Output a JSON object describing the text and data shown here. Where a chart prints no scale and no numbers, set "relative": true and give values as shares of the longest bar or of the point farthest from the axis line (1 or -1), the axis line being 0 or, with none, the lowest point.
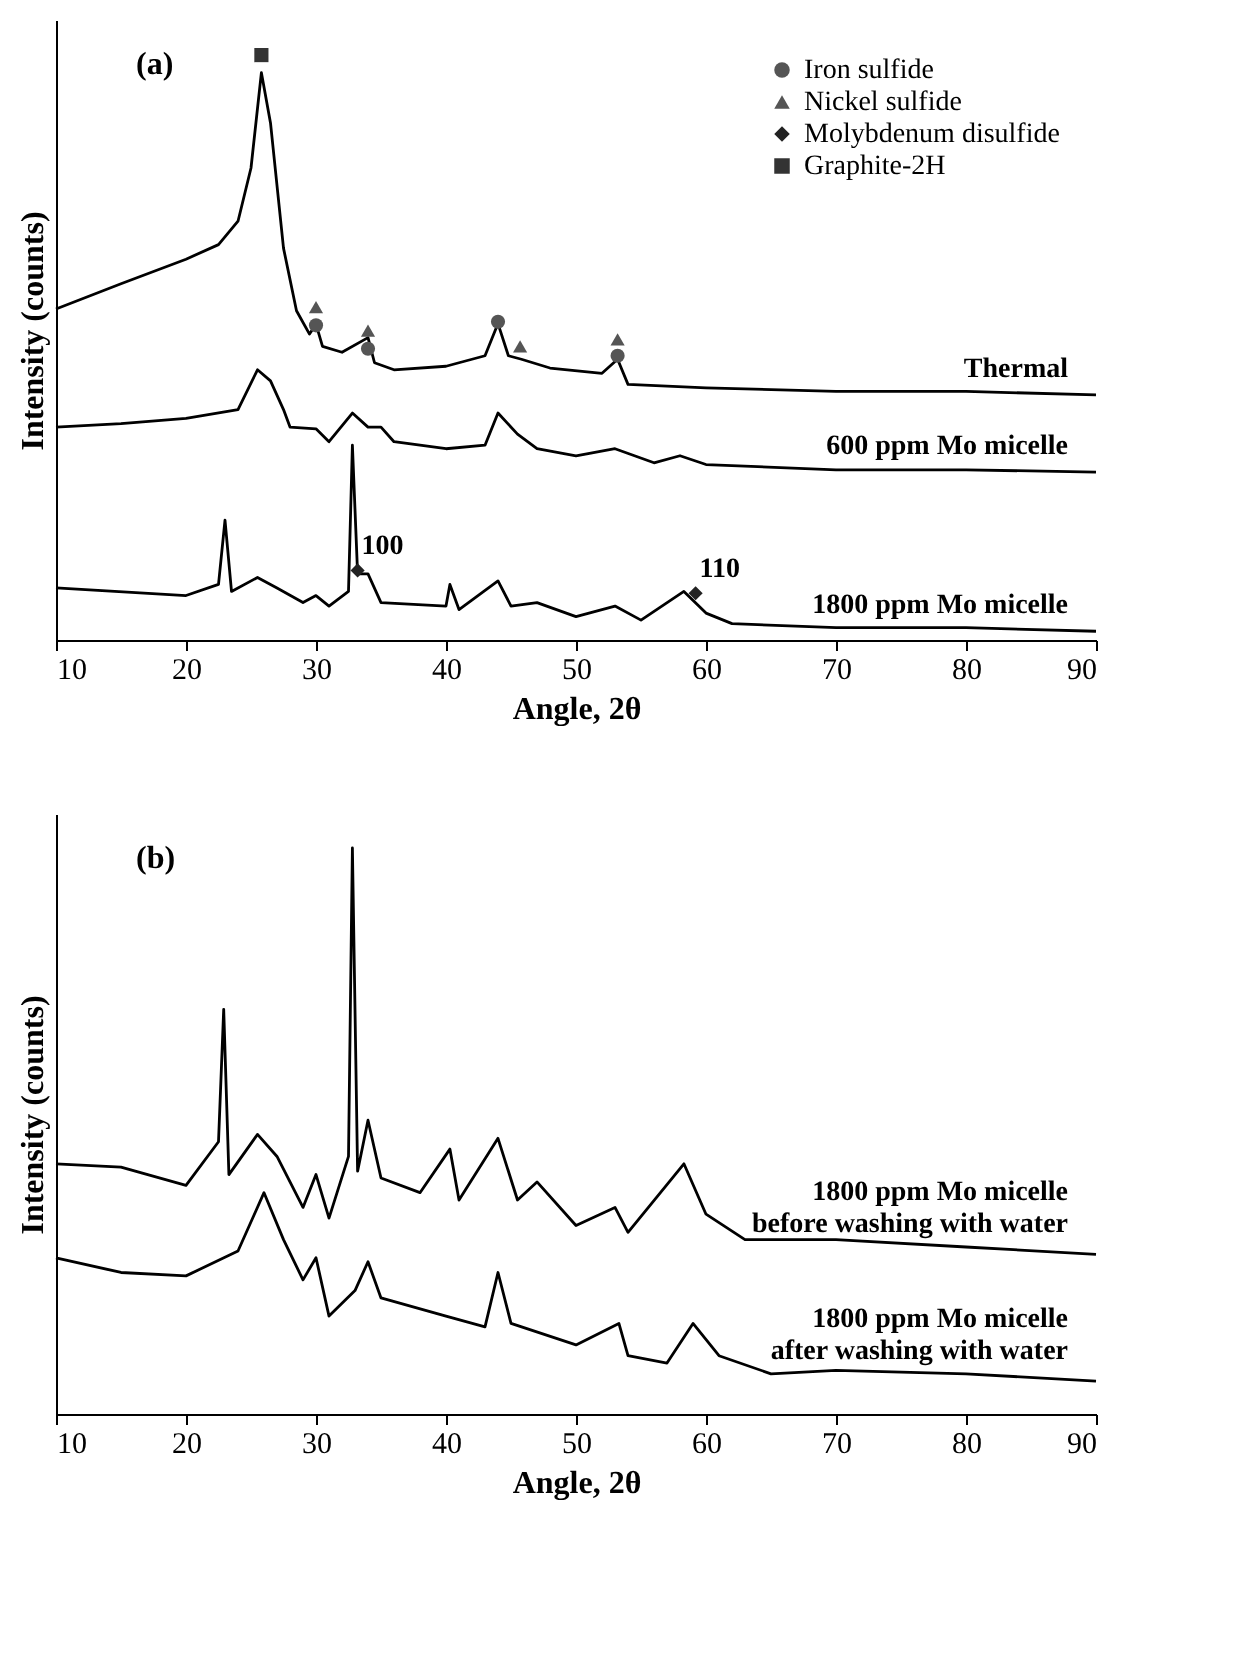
{
  "chart_data": [
    {
      "type": "line",
      "xlabel": "Angle, 2θ",
      "ylabel": "Intensity (counts)",
      "xlim": [
        10,
        90
      ],
      "xticks": [
        10,
        20,
        30,
        40,
        50,
        60,
        70,
        80,
        90
      ],
      "relative": true,
      "legend": "top right",
      "line_style": "solid",
      "annotations": [
        "(a)",
        {
          "text": "100",
          "x": 33.2,
          "y": 0.119
        },
        {
          "text": "110",
          "x": 59.2,
          "y": 0.08
        }
      ],
      "series": [
        {
          "name": "Thermal",
          "type": "line",
          "color": "#000000",
          "x": [
            10,
            15,
            20,
            22.5,
            24,
            25,
            25.8,
            26.5,
            27.5,
            28.5,
            29.5,
            30,
            30.5,
            32,
            34,
            34.5,
            36,
            40,
            43,
            44,
            44.8,
            45.8,
            48,
            52,
            53.2,
            54,
            60,
            70,
            80,
            90
          ],
          "values": [
            0.566,
            0.609,
            0.651,
            0.676,
            0.716,
            0.807,
            0.97,
            0.884,
            0.67,
            0.563,
            0.523,
            0.54,
            0.502,
            0.492,
            0.517,
            0.474,
            0.462,
            0.468,
            0.486,
            0.541,
            0.486,
            0.48,
            0.465,
            0.456,
            0.48,
            0.437,
            0.431,
            0.425,
            0.425,
            0.419
          ]
        },
        {
          "name": "600 ppm Mo micelle",
          "type": "line",
          "color": "#000000",
          "x": [
            10,
            15,
            20,
            24,
            25.5,
            26.5,
            27.5,
            28,
            30,
            31,
            32.8,
            34,
            35,
            36,
            40,
            43,
            44,
            45.5,
            47,
            50,
            53,
            56,
            58,
            60,
            70,
            80,
            90
          ],
          "values": [
            0.364,
            0.37,
            0.379,
            0.394,
            0.462,
            0.443,
            0.394,
            0.364,
            0.361,
            0.339,
            0.388,
            0.364,
            0.364,
            0.339,
            0.327,
            0.333,
            0.388,
            0.352,
            0.327,
            0.315,
            0.327,
            0.303,
            0.315,
            0.3,
            0.291,
            0.291,
            0.287
          ]
        },
        {
          "name": "1800 ppm Mo micelle",
          "type": "line",
          "color": "#000000",
          "x": [
            10,
            20,
            22.5,
            23,
            23.5,
            25.5,
            27,
            29,
            30,
            31,
            32.5,
            32.8,
            33.2,
            34,
            35,
            40,
            40.3,
            41,
            44,
            45,
            47,
            50,
            53,
            55,
            58.3,
            60,
            62,
            70,
            80,
            90
          ],
          "values": [
            0.089,
            0.076,
            0.095,
            0.205,
            0.083,
            0.107,
            0.089,
            0.064,
            0.076,
            0.058,
            0.083,
            0.333,
            0.113,
            0.113,
            0.064,
            0.058,
            0.095,
            0.052,
            0.101,
            0.058,
            0.064,
            0.04,
            0.058,
            0.034,
            0.083,
            0.046,
            0.028,
            0.021,
            0.021,
            0.015
          ]
        },
        {
          "name": "Iron sulfide",
          "type": "scatter",
          "marker": "circle",
          "color": "#555555",
          "x": [
            30,
            34,
            44,
            53.2
          ],
          "values": [
            0.538,
            0.498,
            0.544,
            0.486
          ]
        },
        {
          "name": "Nickel sulfide",
          "type": "scatter",
          "marker": "triangle",
          "color": "#555555",
          "x": [
            30,
            34,
            45.7,
            53.2
          ],
          "values": [
            0.569,
            0.529,
            0.502,
            0.514
          ]
        },
        {
          "name": "Molybdenum disulfide",
          "type": "scatter",
          "marker": "diamond",
          "color": "#222222",
          "x": [
            33.2,
            59.2
          ],
          "values": [
            0.119,
            0.08
          ]
        },
        {
          "name": "Graphite-2H",
          "type": "scatter",
          "marker": "square",
          "color": "#333333",
          "x": [
            25.8
          ],
          "values": [
            1.0
          ]
        }
      ]
    },
    {
      "type": "line",
      "xlabel": "Angle, 2θ",
      "ylabel": "Intensity (counts)",
      "xlim": [
        10,
        90
      ],
      "xticks": [
        10,
        20,
        30,
        40,
        50,
        60,
        70,
        80,
        90
      ],
      "relative": true,
      "line_style": "solid",
      "annotations": [
        "(b)"
      ],
      "series": [
        {
          "name": "1800 ppm Mo micelle\nbefore washing with water",
          "type": "line",
          "color": "#000000",
          "x": [
            10,
            15,
            20,
            22.5,
            22.9,
            23.3,
            25.5,
            27,
            29,
            30,
            31,
            32.5,
            32.8,
            33.2,
            34,
            35,
            38,
            40.3,
            41,
            44,
            45.5,
            47,
            50,
            53,
            54,
            58.3,
            60,
            63,
            70,
            80,
            90
          ],
          "values": [
            0.442,
            0.436,
            0.404,
            0.481,
            0.715,
            0.423,
            0.494,
            0.455,
            0.365,
            0.423,
            0.346,
            0.455,
            1.0,
            0.429,
            0.519,
            0.417,
            0.391,
            0.468,
            0.378,
            0.487,
            0.378,
            0.41,
            0.333,
            0.365,
            0.321,
            0.442,
            0.353,
            0.308,
            0.308,
            0.295,
            0.282
          ]
        },
        {
          "name": "1800 ppm Mo micelle\nafter washing with water",
          "type": "line",
          "color": "#000000",
          "x": [
            10,
            15,
            20,
            24,
            26,
            27.5,
            29,
            30,
            31,
            33,
            34,
            35,
            40,
            43,
            44,
            45,
            50,
            53.3,
            54,
            57,
            59,
            61,
            65,
            70,
            80,
            90
          ],
          "values": [
            0.276,
            0.25,
            0.244,
            0.288,
            0.391,
            0.308,
            0.237,
            0.276,
            0.173,
            0.218,
            0.269,
            0.205,
            0.173,
            0.154,
            0.25,
            0.16,
            0.122,
            0.16,
            0.103,
            0.09,
            0.16,
            0.103,
            0.071,
            0.077,
            0.071,
            0.058
          ]
        }
      ]
    }
  ]
}
